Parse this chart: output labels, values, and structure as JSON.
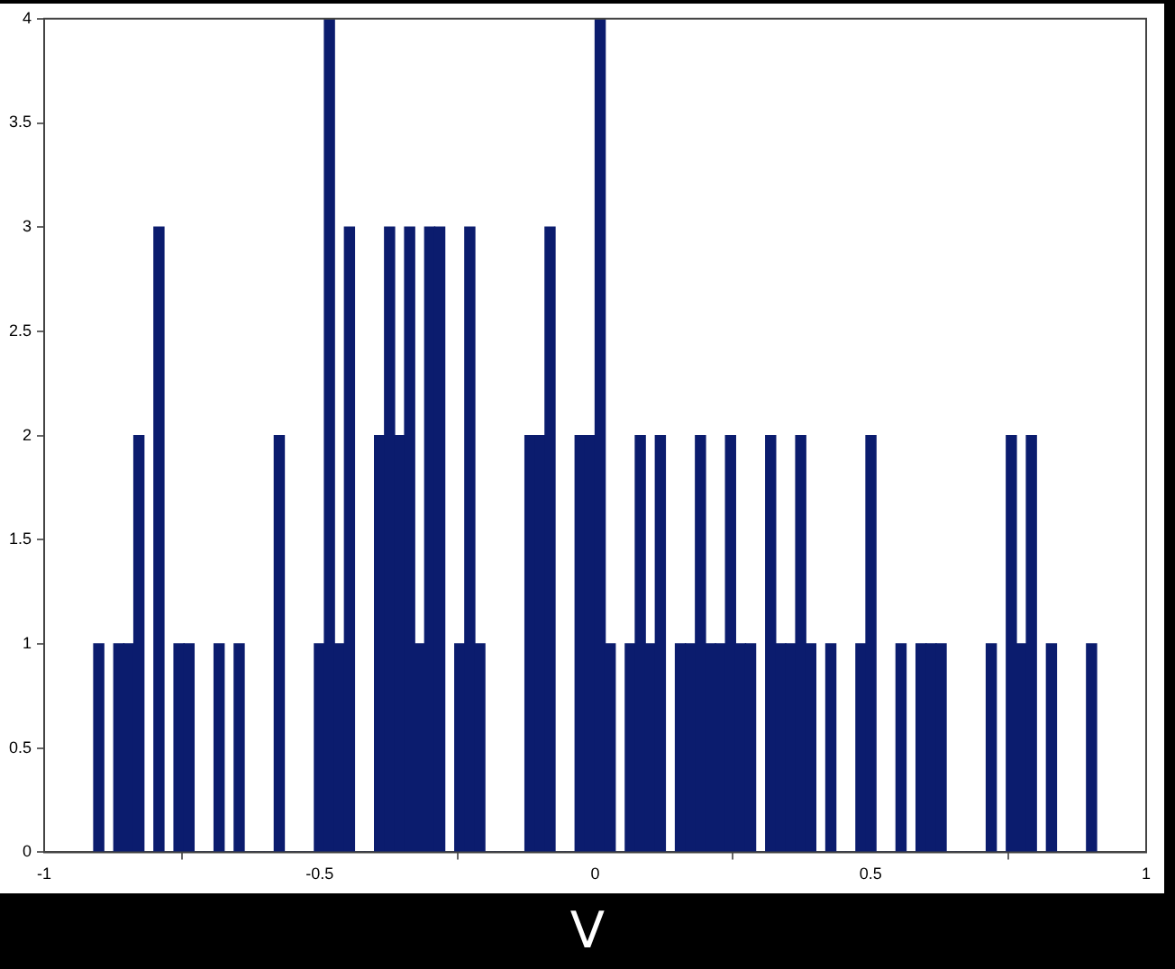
{
  "chart_data": {
    "type": "histogram",
    "xlabel": "V",
    "bins": [
      -0.91,
      -0.8918,
      -0.8736,
      -0.8554,
      -0.8372,
      -0.819,
      -0.8008,
      -0.7826,
      -0.7644,
      -0.7462,
      -0.728,
      -0.7098,
      -0.6916,
      -0.6734,
      -0.6552,
      -0.637,
      -0.6188,
      -0.6006,
      -0.5824,
      -0.5642,
      -0.546,
      -0.5278,
      -0.5096,
      -0.4914,
      -0.4732,
      -0.455,
      -0.4368,
      -0.4186,
      -0.4004,
      -0.3822,
      -0.364,
      -0.3458,
      -0.3276,
      -0.3094,
      -0.2912,
      -0.273,
      -0.2548,
      -0.2366,
      -0.2184,
      -0.2002,
      -0.182,
      -0.1638,
      -0.1456,
      -0.1274,
      -0.1092,
      -0.091,
      -0.0728,
      -0.0546,
      -0.0364,
      -0.0182,
      0,
      0.0182,
      0.0364,
      0.0546,
      0.0728,
      0.091,
      0.1092,
      0.1274,
      0.1456,
      0.1638,
      0.182,
      0.2002,
      0.2184,
      0.2366,
      0.2548,
      0.273,
      0.2912,
      0.3094,
      0.3276,
      0.3458,
      0.364,
      0.3822,
      0.4004,
      0.4186,
      0.4368,
      0.455,
      0.4732,
      0.4914,
      0.5096,
      0.5278,
      0.546,
      0.5642,
      0.5824,
      0.6006,
      0.6188,
      0.637,
      0.6552,
      0.6734,
      0.6916,
      0.7098,
      0.728,
      0.7462,
      0.7644,
      0.7826,
      0.8008,
      0.819,
      0.8372,
      0.8554,
      0.8736,
      0.8918,
      0.91
    ],
    "values": [
      1,
      0,
      1,
      1,
      2,
      0,
      3,
      0,
      1,
      1,
      0,
      0,
      1,
      0,
      1,
      0,
      0,
      0,
      2,
      0,
      0,
      0,
      1,
      4,
      1,
      3,
      0,
      0,
      2,
      3,
      2,
      3,
      1,
      3,
      3,
      0,
      1,
      3,
      1,
      0,
      0,
      0,
      0,
      2,
      2,
      3,
      0,
      0,
      2,
      2,
      4,
      1,
      0,
      1,
      2,
      1,
      2,
      0,
      1,
      1,
      2,
      1,
      1,
      2,
      1,
      1,
      0,
      2,
      1,
      1,
      2,
      1,
      0,
      1,
      0,
      0,
      1,
      2,
      0,
      0,
      1,
      0,
      1,
      1,
      1,
      0,
      0,
      0,
      0,
      1,
      0,
      2,
      1,
      2,
      0,
      1,
      0,
      0,
      0,
      1
    ],
    "color": "#0b1c6e",
    "xlim": [
      -1,
      1
    ],
    "xticks": [
      -1,
      -0.5,
      0,
      0.5,
      1
    ],
    "ylim": [
      0,
      4
    ],
    "yticks": [
      0,
      0.5,
      1,
      1.5,
      2,
      2.5,
      3,
      3.5,
      4
    ],
    "grid": false,
    "legend": false
  }
}
